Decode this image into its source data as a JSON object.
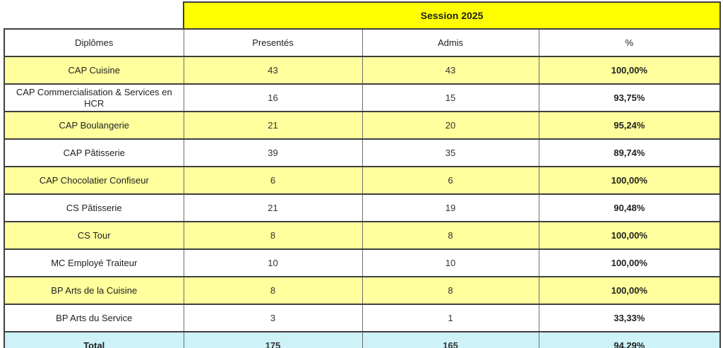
{
  "table": {
    "session_title": "Session 2025",
    "columns": [
      "Diplômes",
      "Presentés",
      "Admis",
      "%"
    ],
    "rows": [
      {
        "label": "CAP Cuisine",
        "presentes": "43",
        "admis": "43",
        "pct": "100,00%"
      },
      {
        "label": "CAP Commercialisation & Services en HCR",
        "presentes": "16",
        "admis": "15",
        "pct": "93,75%"
      },
      {
        "label": "CAP Boulangerie",
        "presentes": "21",
        "admis": "20",
        "pct": "95,24%"
      },
      {
        "label": "CAP Pâtisserie",
        "presentes": "39",
        "admis": "35",
        "pct": "89,74%"
      },
      {
        "label": "CAP Chocolatier Confiseur",
        "presentes": "6",
        "admis": "6",
        "pct": "100,00%"
      },
      {
        "label": "CS Pâtisserie",
        "presentes": "21",
        "admis": "19",
        "pct": "90,48%"
      },
      {
        "label": "CS Tour",
        "presentes": "8",
        "admis": "8",
        "pct": "100,00%"
      },
      {
        "label": "MC Employé Traiteur",
        "presentes": "10",
        "admis": "10",
        "pct": "100,00%"
      },
      {
        "label": "BP Arts de la Cuisine",
        "presentes": "8",
        "admis": "8",
        "pct": "100,00%"
      },
      {
        "label": "BP Arts du Service",
        "presentes": "3",
        "admis": "1",
        "pct": "33,33%"
      }
    ],
    "total": {
      "label": "Total",
      "presentes": "175",
      "admis": "165",
      "pct": "94,29%"
    }
  },
  "colors": {
    "session_bg": "#FFFF00",
    "row_highlight_bg": "#FFFF9D",
    "total_bg": "#CDF2F8",
    "border_dark": "#3F3F3F",
    "border_light": "#6E6E6E"
  }
}
